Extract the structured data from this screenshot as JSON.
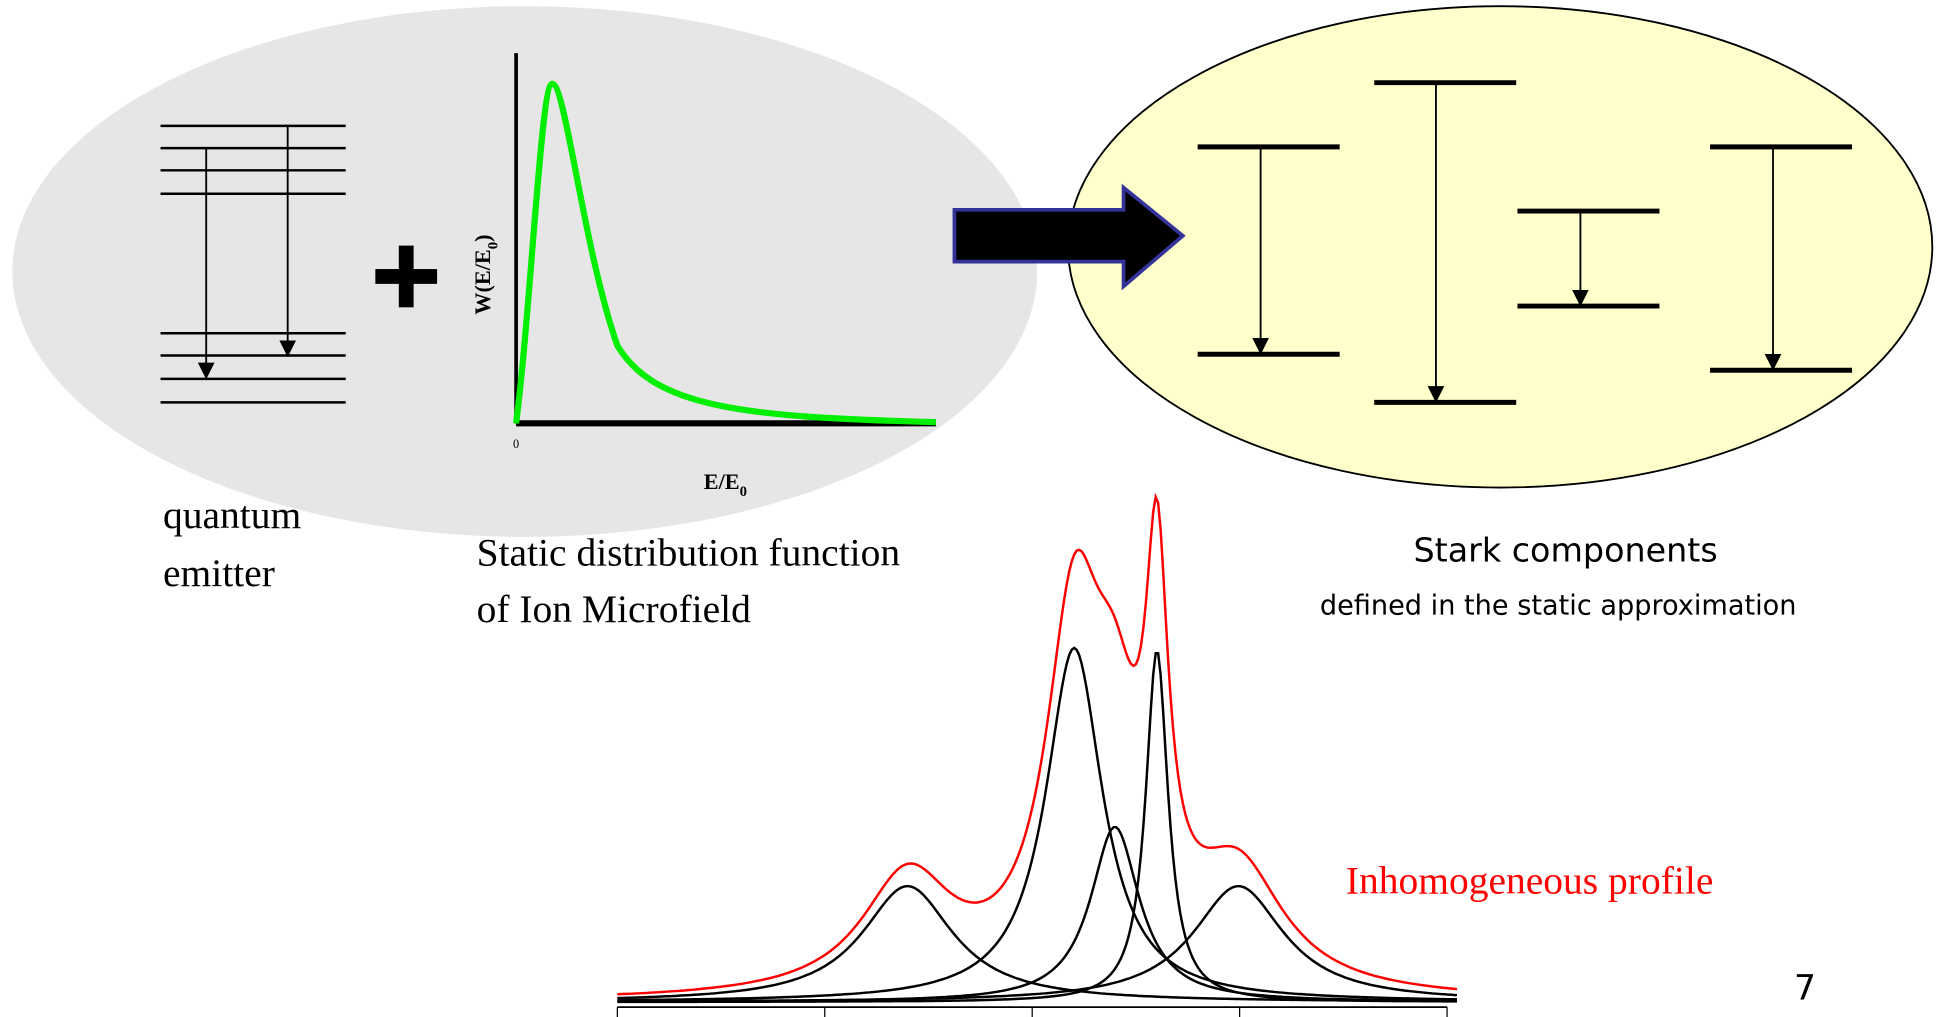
{
  "emitter_label": [
    "quantum",
    "emitter"
  ],
  "distribution": {
    "ylabel": {
      "main": "W(E/E",
      "sub": "0",
      "close": ")"
    },
    "xlabel": {
      "main": "E/E",
      "sub": "0"
    },
    "origin_label": "0",
    "caption": [
      "Static distribution function",
      "of Ion Microfield"
    ]
  },
  "stark": {
    "title": "Stark components",
    "subtitle": "defined in the static approximation"
  },
  "profile_label": "Inhomogeneous profile",
  "page_number": "7"
}
